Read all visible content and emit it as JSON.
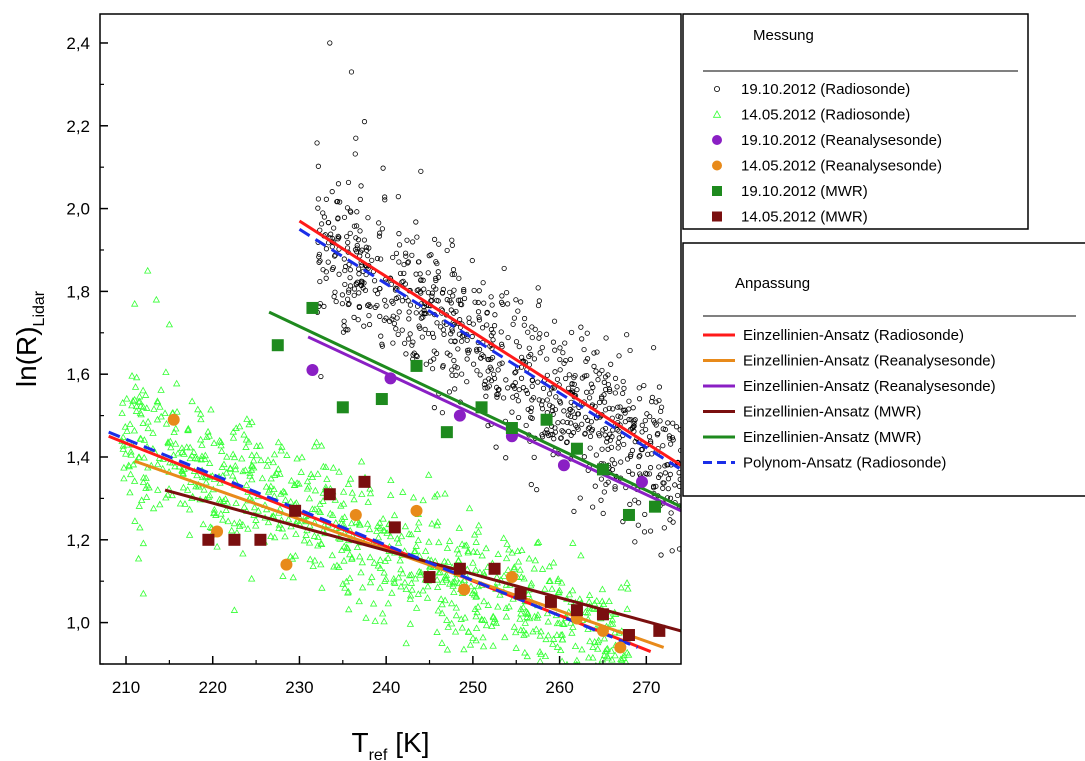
{
  "chart_data": {
    "type": "scatter",
    "xlabel": {
      "main": "T",
      "sub": "ref",
      "unit": "[K]"
    },
    "ylabel": {
      "main": "ln(R)",
      "sub": "Lidar"
    },
    "xlim": [
      207,
      274
    ],
    "ylim": [
      0.9,
      2.47
    ],
    "xticks": [
      210,
      220,
      230,
      240,
      250,
      260,
      270
    ],
    "yticks": [
      1.0,
      1.2,
      1.4,
      1.6,
      1.8,
      2.0,
      2.2,
      2.4
    ],
    "ytick_labels": [
      "1,0",
      "1,2",
      "1,4",
      "1,6",
      "1,8",
      "2,0",
      "2,2",
      "2,4"
    ],
    "grid": false,
    "legends": [
      {
        "title": "Messung",
        "placement": "right-top",
        "entries": [
          {
            "label": "19.10.2012 (Radiosonde)",
            "marker": "open-circle",
            "color": "#000000"
          },
          {
            "label": "14.05.2012 (Radiosonde)",
            "marker": "open-triangle",
            "color": "#33ff33"
          },
          {
            "label": "19.10.2012 (Reanalysesonde)",
            "marker": "filled-circle",
            "color": "#8a1fc4"
          },
          {
            "label": "14.05.2012 (Reanalysesonde)",
            "marker": "filled-circle",
            "color": "#e88a1a"
          },
          {
            "label": "19.10.2012 (MWR)",
            "marker": "filled-square",
            "color": "#1e8a1e"
          },
          {
            "label": "14.05.2012 (MWR)",
            "marker": "filled-square",
            "color": "#7a0f0f"
          }
        ]
      },
      {
        "title": "Anpassung",
        "placement": "right-middle",
        "entries": [
          {
            "label": "Einzellinien-Ansatz (Radiosonde)",
            "style": "solid",
            "color": "#ff1a1a"
          },
          {
            "label": "Einzellinien-Ansatz (Reanalysesonde)",
            "style": "solid",
            "color": "#e88a1a"
          },
          {
            "label": "Einzellinien-Ansatz (Reanalysesonde)",
            "style": "solid",
            "color": "#8a1fc4"
          },
          {
            "label": "Einzellinien-Ansatz (MWR)",
            "style": "solid",
            "color": "#7a0f0f"
          },
          {
            "label": "Einzellinien-Ansatz (MWR)",
            "style": "solid",
            "color": "#1e8a1e"
          },
          {
            "label": "Polynom-Ansatz (Radiosonde)",
            "style": "dashed",
            "color": "#1a2ee8"
          }
        ]
      }
    ],
    "scatter_clouds": [
      {
        "series": 0,
        "approx_count": 900,
        "x_range": [
          232,
          274
        ],
        "fit": {
          "x0": 230,
          "y0": 1.94,
          "slope": -0.0131
        },
        "spread": 0.09,
        "extra_points": [
          [
            233.5,
            2.4
          ],
          [
            236,
            2.33
          ],
          [
            237.5,
            2.21
          ],
          [
            236.5,
            2.17
          ],
          [
            244,
            2.09
          ],
          [
            234.5,
            2.06
          ]
        ]
      },
      {
        "series": 1,
        "approx_count": 900,
        "x_range": [
          209.5,
          268
        ],
        "fit": {
          "x0": 209,
          "y0": 1.46,
          "slope": -0.0093
        },
        "spread": 0.085,
        "extra_points": [
          [
            212.5,
            1.85
          ],
          [
            213.5,
            1.78
          ],
          [
            211,
            1.77
          ],
          [
            215,
            1.72
          ],
          [
            212,
            1.07
          ],
          [
            222.5,
            1.03
          ]
        ]
      }
    ],
    "series": [
      {
        "name": "19.10.2012 (Reanalysesonde)",
        "marker": "filled-circle",
        "color": "#8a1fc4",
        "points": [
          [
            231.5,
            1.61
          ],
          [
            240.5,
            1.59
          ],
          [
            248.5,
            1.5
          ],
          [
            254.5,
            1.45
          ],
          [
            260.5,
            1.38
          ],
          [
            265,
            1.37
          ],
          [
            269.5,
            1.34
          ]
        ]
      },
      {
        "name": "14.05.2012 (Reanalysesonde)",
        "marker": "filled-circle",
        "color": "#e88a1a",
        "points": [
          [
            215.5,
            1.49
          ],
          [
            220.5,
            1.22
          ],
          [
            228.5,
            1.14
          ],
          [
            236.5,
            1.26
          ],
          [
            243.5,
            1.27
          ],
          [
            249,
            1.08
          ],
          [
            254.5,
            1.11
          ],
          [
            262,
            1.01
          ],
          [
            265,
            0.98
          ],
          [
            267,
            0.94
          ]
        ]
      },
      {
        "name": "19.10.2012 (MWR)",
        "marker": "filled-square",
        "color": "#1e8a1e",
        "points": [
          [
            227.5,
            1.67
          ],
          [
            231.5,
            1.76
          ],
          [
            235,
            1.52
          ],
          [
            239.5,
            1.54
          ],
          [
            243.5,
            1.62
          ],
          [
            247,
            1.46
          ],
          [
            251,
            1.52
          ],
          [
            254.5,
            1.47
          ],
          [
            258.5,
            1.49
          ],
          [
            262,
            1.42
          ],
          [
            265,
            1.37
          ],
          [
            268,
            1.26
          ],
          [
            271,
            1.28
          ]
        ]
      },
      {
        "name": "14.05.2012 (MWR)",
        "marker": "filled-square",
        "color": "#7a0f0f",
        "points": [
          [
            219.5,
            1.2
          ],
          [
            222.5,
            1.2
          ],
          [
            225.5,
            1.2
          ],
          [
            229.5,
            1.27
          ],
          [
            233.5,
            1.31
          ],
          [
            237.5,
            1.34
          ],
          [
            241,
            1.23
          ],
          [
            245,
            1.11
          ],
          [
            248.5,
            1.13
          ],
          [
            252.5,
            1.13
          ],
          [
            255.5,
            1.07
          ],
          [
            259,
            1.05
          ],
          [
            262,
            1.03
          ],
          [
            265,
            1.02
          ],
          [
            268,
            0.97
          ],
          [
            271.5,
            0.98
          ]
        ]
      }
    ],
    "fit_lines": [
      {
        "name": "Einzellinien-Ansatz (Radiosonde)",
        "color": "#ff1a1a",
        "style": "solid",
        "segments": [
          [
            [
              230,
              1.97
            ],
            [
              274,
              1.38
            ]
          ],
          [
            [
              208,
              1.45
            ],
            [
              270.5,
              0.93
            ]
          ]
        ]
      },
      {
        "name": "Einzellinien-Ansatz (Reanalysesonde)",
        "color": "#e88a1a",
        "style": "solid",
        "segments": [
          [
            [
              211,
              1.39
            ],
            [
              272,
              0.94
            ]
          ]
        ]
      },
      {
        "name": "Einzellinien-Ansatz (Reanalysesonde)",
        "color": "#8a1fc4",
        "style": "solid",
        "segments": [
          [
            [
              231,
              1.69
            ],
            [
              274,
              1.27
            ]
          ]
        ]
      },
      {
        "name": "Einzellinien-Ansatz (MWR)",
        "color": "#7a0f0f",
        "style": "solid",
        "segments": [
          [
            [
              214.5,
              1.32
            ],
            [
              274,
              0.98
            ]
          ]
        ]
      },
      {
        "name": "Einzellinien-Ansatz (MWR)",
        "color": "#1e8a1e",
        "style": "solid",
        "segments": [
          [
            [
              226.5,
              1.75
            ],
            [
              274,
              1.28
            ]
          ]
        ]
      },
      {
        "name": "Polynom-Ansatz (Radiosonde)",
        "color": "#1a2ee8",
        "style": "dashed",
        "segments": [
          [
            [
              230,
              1.95
            ],
            [
              274,
              1.37
            ]
          ],
          [
            [
              208,
              1.46
            ],
            [
              269,
              0.94
            ]
          ]
        ]
      }
    ]
  }
}
